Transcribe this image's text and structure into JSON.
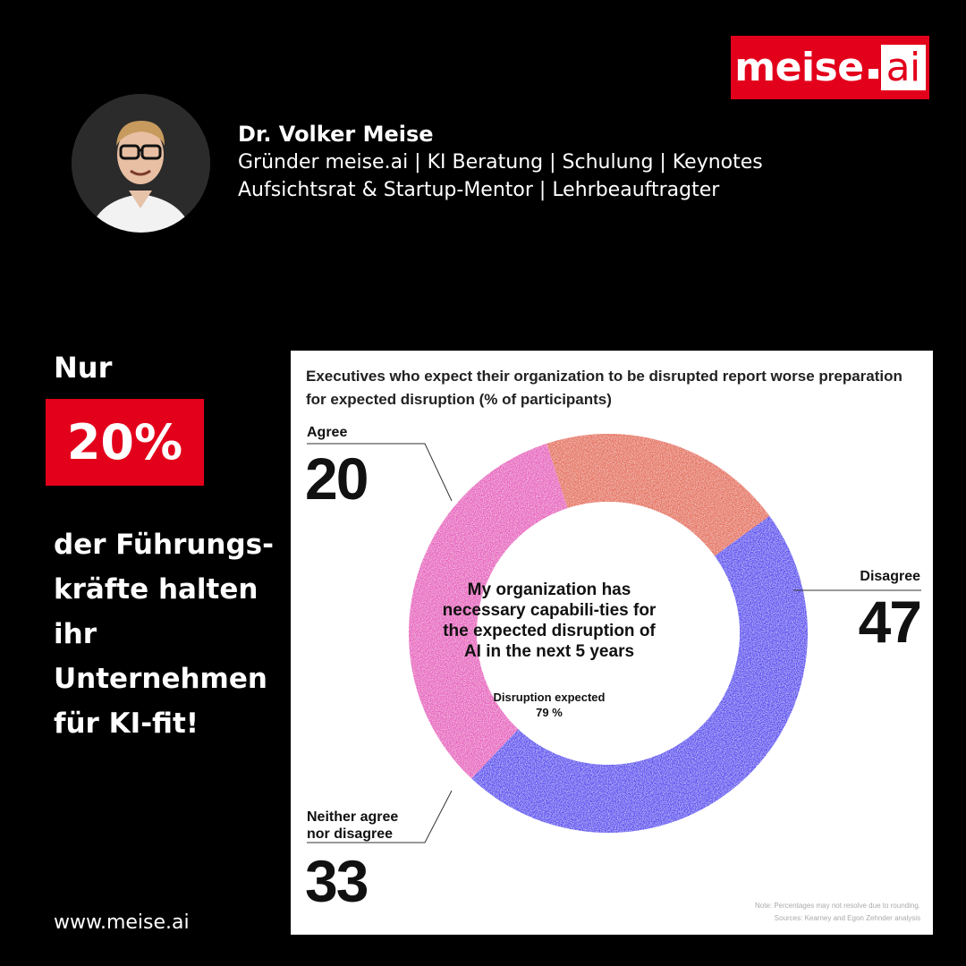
{
  "brand": {
    "logo_main": "meise",
    "logo_ai": "ai",
    "accent": "#e3001b"
  },
  "profile": {
    "name": "Dr. Volker Meise",
    "line1": "Gründer meise.ai | KI Beratung | Schulung | Keynotes",
    "line2": "Aufsichtsrat & Startup-Mentor | Lehrbeauftragter"
  },
  "headline": {
    "pre": "Nur",
    "percent": "20%",
    "claim_lines": [
      "der Führungs-",
      "kräfte halten",
      "ihr",
      "Unternehmen",
      "für KI-fit!"
    ]
  },
  "footer_url": "www.meise.ai",
  "chart_data": {
    "type": "pie",
    "title": "Executives who expect their organization to be disrupted report worse preparation for expected disruption (% of participants)",
    "center_question": "My organization has necessary capabili-ties for the expected disruption of AI in the next 5 years",
    "center_sub_label": "Disruption expected",
    "center_sub_value": "79 %",
    "slices": [
      {
        "label": "Agree",
        "value": 20,
        "color": "#e6705a"
      },
      {
        "label": "Disagree",
        "value": 47,
        "color": "#5a4cf0"
      },
      {
        "label": "Neither agree nor disagree",
        "value": 33,
        "color": "#e85fc0"
      }
    ],
    "labels": {
      "agree": "Agree",
      "disagree": "Disagree",
      "neither_l1": "Neither agree",
      "neither_l2": "nor disagree"
    },
    "values_text": {
      "agree": "20",
      "disagree": "47",
      "neither": "33"
    },
    "note": "Note: Percentages may not resolve due to rounding.",
    "sources": "Sources: Kearney and Egon Zehnder analysis"
  }
}
